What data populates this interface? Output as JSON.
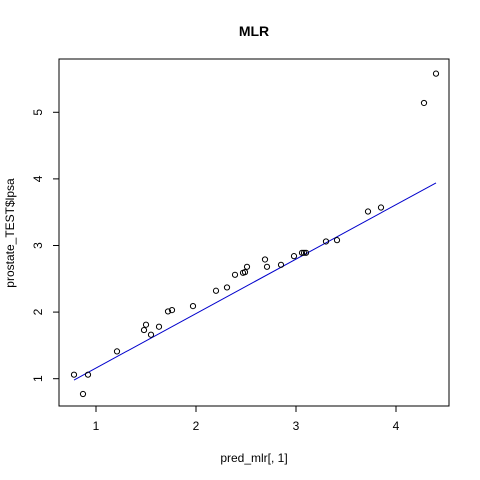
{
  "chart_data": {
    "type": "scatter",
    "title": "MLR",
    "xlabel": "pred_mlr[, 1]",
    "ylabel": "prostate_TEST$lpsa",
    "xlim": [
      0.63,
      4.53
    ],
    "ylim": [
      0.59,
      5.8
    ],
    "xticks": [
      1,
      2,
      3,
      4
    ],
    "yticks": [
      1,
      2,
      3,
      4,
      5
    ],
    "grid": false,
    "colors": {
      "points": "#000000",
      "fit_line": "#0000cc",
      "frame": "#000000"
    },
    "points": [
      {
        "x": 0.78,
        "y": 1.06
      },
      {
        "x": 0.87,
        "y": 0.77
      },
      {
        "x": 0.92,
        "y": 1.06
      },
      {
        "x": 1.21,
        "y": 1.41
      },
      {
        "x": 1.48,
        "y": 1.73
      },
      {
        "x": 1.5,
        "y": 1.81
      },
      {
        "x": 1.55,
        "y": 1.66
      },
      {
        "x": 1.63,
        "y": 1.78
      },
      {
        "x": 1.72,
        "y": 2.01
      },
      {
        "x": 1.76,
        "y": 2.03
      },
      {
        "x": 1.97,
        "y": 2.09
      },
      {
        "x": 2.2,
        "y": 2.32
      },
      {
        "x": 2.31,
        "y": 2.37
      },
      {
        "x": 2.39,
        "y": 2.56
      },
      {
        "x": 2.47,
        "y": 2.59
      },
      {
        "x": 2.49,
        "y": 2.6
      },
      {
        "x": 2.51,
        "y": 2.68
      },
      {
        "x": 2.69,
        "y": 2.79
      },
      {
        "x": 2.71,
        "y": 2.68
      },
      {
        "x": 2.85,
        "y": 2.71
      },
      {
        "x": 2.98,
        "y": 2.84
      },
      {
        "x": 3.06,
        "y": 2.89
      },
      {
        "x": 3.08,
        "y": 2.89
      },
      {
        "x": 3.1,
        "y": 2.89
      },
      {
        "x": 3.3,
        "y": 3.06
      },
      {
        "x": 3.41,
        "y": 3.08
      },
      {
        "x": 3.72,
        "y": 3.51
      },
      {
        "x": 3.85,
        "y": 3.57
      },
      {
        "x": 4.28,
        "y": 5.14
      },
      {
        "x": 4.4,
        "y": 5.58
      }
    ],
    "fit_line": {
      "x": [
        0.78,
        4.4
      ],
      "y": [
        0.98,
        3.94
      ]
    }
  }
}
